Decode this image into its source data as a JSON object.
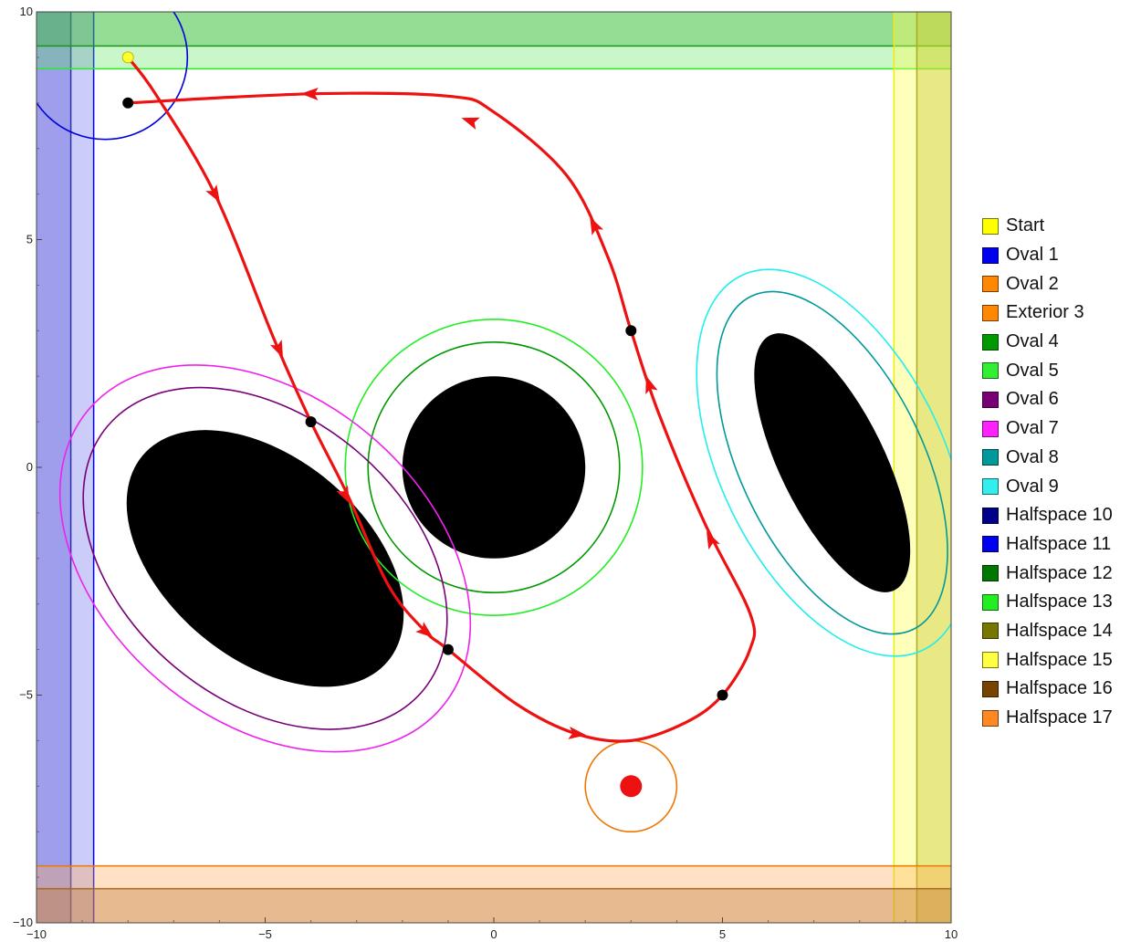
{
  "chart_data": {
    "type": "scatter",
    "title": "",
    "xlabel": "",
    "ylabel": "",
    "xlim": [
      -10,
      10
    ],
    "ylim": [
      -10,
      10
    ],
    "x_ticks": [
      -10,
      -5,
      0,
      5,
      10
    ],
    "y_ticks": [
      -10,
      -5,
      0,
      5,
      10
    ],
    "x_tick_labels": [
      "−10",
      "−5",
      "0",
      "5",
      "10"
    ],
    "y_tick_labels": [
      "−10",
      "−5",
      "0",
      "5",
      "10"
    ],
    "grid": false,
    "legend_position": "right",
    "obstacles": [
      {
        "name": "obstacle-left",
        "center": [
          -5,
          -2
        ],
        "rx": 3.5,
        "ry": 2.2,
        "rotation_deg": -40
      },
      {
        "name": "obstacle-center",
        "center": [
          0,
          0
        ],
        "rx": 2,
        "ry": 2,
        "rotation_deg": 0
      },
      {
        "name": "obstacle-right",
        "center": [
          7.4,
          0.1
        ],
        "rx": 3.1,
        "ry": 1.15,
        "rotation_deg": -64
      }
    ],
    "ovals": [
      {
        "name": "Oval 1",
        "color": "#0000dd",
        "center": [
          -8.5,
          9
        ],
        "rx": 1.8,
        "ry": 1.8,
        "rotation_deg": 0
      },
      {
        "name": "Oval 2",
        "color": "#ee7700",
        "center": [
          3,
          -7
        ],
        "rx": 1.0,
        "ry": 1.0,
        "rotation_deg": 0
      },
      {
        "name": "Oval 4",
        "color": "#009900",
        "center": [
          0,
          0
        ],
        "rx": 2.75,
        "ry": 2.75,
        "rotation_deg": 0
      },
      {
        "name": "Oval 5",
        "color": "#22ee22",
        "center": [
          0,
          0
        ],
        "rx": 3.25,
        "ry": 3.25,
        "rotation_deg": 0
      },
      {
        "name": "Oval 6",
        "color": "#770077",
        "center": [
          -5,
          -2
        ],
        "rx": 4.5,
        "ry": 3.1,
        "rotation_deg": -40
      },
      {
        "name": "Oval 7",
        "color": "#ee22ee",
        "center": [
          -5,
          -2
        ],
        "rx": 5.05,
        "ry": 3.55,
        "rotation_deg": -40
      },
      {
        "name": "Oval 8",
        "color": "#009999",
        "center": [
          7.4,
          0.1
        ],
        "rx": 4.05,
        "ry": 2.0,
        "rotation_deg": -64
      },
      {
        "name": "Oval 9",
        "color": "#22eeee",
        "center": [
          7.4,
          0.1
        ],
        "rx": 4.55,
        "ry": 2.45,
        "rotation_deg": -64
      }
    ],
    "halfspaces": [
      {
        "name": "halfspace-left-dark",
        "axis": "x",
        "from": -10,
        "to": -9.25,
        "fill": "rgba(90,90,210,0.45)",
        "edge": "#000088"
      },
      {
        "name": "halfspace-left-light",
        "axis": "x",
        "from": -10,
        "to": -8.75,
        "fill": "rgba(120,120,240,0.38)",
        "edge": "#0000ee"
      },
      {
        "name": "halfspace-top-dark",
        "axis": "y",
        "from": 9.25,
        "to": 10,
        "fill": "rgba(40,150,40,0.35)",
        "edge": "#007700"
      },
      {
        "name": "halfspace-top-light",
        "axis": "y",
        "from": 8.75,
        "to": 10,
        "fill": "rgba(80,230,80,0.30)",
        "edge": "#22ee22"
      },
      {
        "name": "halfspace-right-dark",
        "axis": "x",
        "from": 9.25,
        "to": 10,
        "fill": "rgba(150,150,0,0.35)",
        "edge": "#777700"
      },
      {
        "name": "halfspace-right-light",
        "axis": "x",
        "from": 8.75,
        "to": 10,
        "fill": "rgba(255,255,80,0.38)",
        "edge": "#eeee00"
      },
      {
        "name": "halfspace-bottom-dark",
        "axis": "y",
        "from": -10,
        "to": -9.25,
        "fill": "rgba(150,90,20,0.35)",
        "edge": "#774400"
      },
      {
        "name": "halfspace-bottom-light",
        "axis": "y",
        "from": -10,
        "to": -8.75,
        "fill": "rgba(255,170,90,0.35)",
        "edge": "#ee7700"
      }
    ],
    "trajectory": {
      "color": "#ee1111",
      "points": [
        [
          -8,
          9
        ],
        [
          -7.4,
          8.2
        ],
        [
          -6.1,
          6.0
        ],
        [
          -4.8,
          2.8
        ],
        [
          -4,
          1
        ],
        [
          -3.2,
          -0.6
        ],
        [
          -2.3,
          -2.6
        ],
        [
          -1.5,
          -3.6
        ],
        [
          -1,
          -4
        ],
        [
          0.5,
          -5.2
        ],
        [
          1.8,
          -5.85
        ],
        [
          3,
          -6
        ],
        [
          4.2,
          -5.6
        ],
        [
          5,
          -5
        ],
        [
          5.6,
          -4.0
        ],
        [
          5.6,
          -3.2
        ],
        [
          4.6,
          -1.2
        ],
        [
          3.6,
          1.2
        ],
        [
          3,
          3
        ],
        [
          2.5,
          4.6
        ],
        [
          1.6,
          6.4
        ],
        [
          0,
          7.8
        ],
        [
          -1,
          8.15
        ],
        [
          -4,
          8.2
        ],
        [
          -8,
          8
        ]
      ],
      "arrows": [
        [
          -6.1,
          6.0
        ],
        [
          -4.7,
          2.6
        ],
        [
          -3.25,
          -0.6
        ],
        [
          -1.5,
          -3.6
        ],
        [
          1.8,
          -5.85
        ],
        [
          4.75,
          -1.6
        ],
        [
          3.4,
          1.8
        ],
        [
          2.2,
          5.3
        ],
        [
          -0.5,
          7.6
        ],
        [
          -4.0,
          8.2
        ]
      ],
      "waypoints": [
        [
          -8,
          8
        ],
        [
          -4,
          1
        ],
        [
          -1,
          -4
        ],
        [
          5,
          -5
        ],
        [
          3,
          3
        ]
      ],
      "start": [
        -8,
        9
      ],
      "goal": [
        3,
        -7
      ]
    },
    "legend": [
      {
        "label": "Start",
        "color": "#ffff00"
      },
      {
        "label": "Oval 1",
        "color": "#0000ee"
      },
      {
        "label": "Oval 2",
        "color": "#ff8800"
      },
      {
        "label": "Exterior 3",
        "color": "#ff8800"
      },
      {
        "label": "Oval 4",
        "color": "#009900"
      },
      {
        "label": "Oval 5",
        "color": "#33ee33"
      },
      {
        "label": "Oval 6",
        "color": "#770077"
      },
      {
        "label": "Oval 7",
        "color": "#ff22ff"
      },
      {
        "label": "Oval 8",
        "color": "#009999"
      },
      {
        "label": "Oval 9",
        "color": "#33eeee"
      },
      {
        "label": "Halfspace 10",
        "color": "#000088"
      },
      {
        "label": "Halfspace 11",
        "color": "#0000ee"
      },
      {
        "label": "Halfspace 12",
        "color": "#007700"
      },
      {
        "label": "Halfspace 13",
        "color": "#22ee22"
      },
      {
        "label": "Halfspace 14",
        "color": "#777700"
      },
      {
        "label": "Halfspace 15",
        "color": "#ffff44"
      },
      {
        "label": "Halfspace 16",
        "color": "#774400"
      },
      {
        "label": "Halfspace 17",
        "color": "#ff8822"
      }
    ]
  }
}
